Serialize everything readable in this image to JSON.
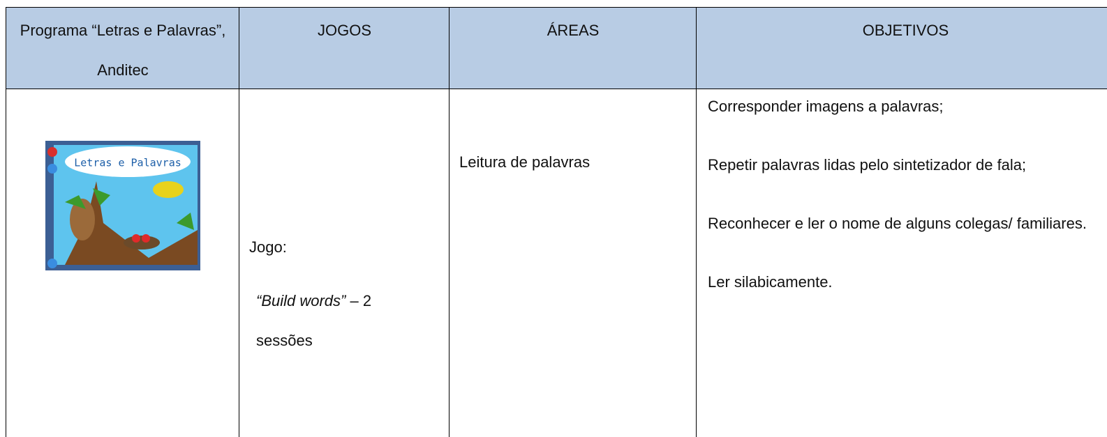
{
  "table": {
    "header": [
      "Programa “Letras e Palavras”, Anditec",
      "JOGOS",
      "ÁREAS",
      "OBJETIVOS"
    ],
    "rows": [
      {
        "image_caption": "Letras e Palavras",
        "game_label": "Jogo:",
        "game_name": "“Build words”",
        "game_sessions": "– 2 sessões",
        "area": "Leitura de palavras",
        "objectives": [
          "Corresponder imagens a palavras;",
          "Repetir palavras lidas pelo sintetizador de fala;",
          "Reconhecer e ler o nome de alguns colegas/ familiares.",
          "Ler silabicamente."
        ]
      }
    ]
  }
}
